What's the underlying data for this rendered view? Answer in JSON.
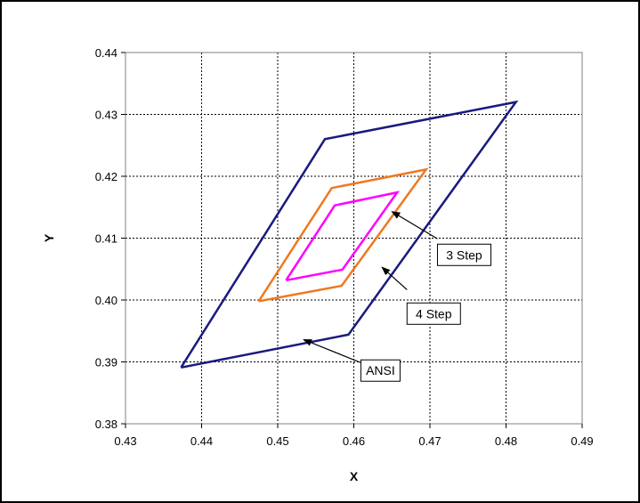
{
  "chart_data": {
    "type": "line",
    "title": "",
    "xlabel": "X",
    "ylabel": "Y",
    "xlim": [
      0.43,
      0.49
    ],
    "ylim": [
      0.38,
      0.44
    ],
    "xticks": [
      "0.43",
      "0.44",
      "0.45",
      "0.46",
      "0.47",
      "0.48",
      "0.49"
    ],
    "yticks": [
      "0.38",
      "0.39",
      "0.40",
      "0.41",
      "0.42",
      "0.43",
      "0.44"
    ],
    "grid": true,
    "legend": "none",
    "series": [
      {
        "name": "ANSI",
        "color": "#1a1a80",
        "x": [
          0.4373,
          0.4562,
          0.4813,
          0.4593,
          0.4373
        ],
        "y": [
          0.3891,
          0.426,
          0.432,
          0.3944,
          0.3891
        ]
      },
      {
        "name": "4 Step",
        "color": "#f07820",
        "x": [
          0.4475,
          0.4571,
          0.4695,
          0.4584,
          0.4475
        ],
        "y": [
          0.3998,
          0.4181,
          0.4211,
          0.4023,
          0.3998
        ]
      },
      {
        "name": "3 Step",
        "color": "#ff00ff",
        "x": [
          0.4511,
          0.4575,
          0.4657,
          0.4585,
          0.4511
        ],
        "y": [
          0.4032,
          0.4153,
          0.4174,
          0.4049,
          0.4032
        ]
      }
    ],
    "annotations": [
      {
        "text": "3 Step",
        "series": "3 Step",
        "arrow_to": [
          0.465,
          0.4143
        ],
        "label_at": [
          0.4745,
          0.4073
        ]
      },
      {
        "text": "4 Step",
        "series": "4 Step",
        "arrow_to": [
          0.4637,
          0.4053
        ],
        "label_at": [
          0.4705,
          0.3978
        ]
      },
      {
        "text": "ANSI",
        "series": "ANSI",
        "arrow_to": [
          0.4534,
          0.3936
        ],
        "label_at": [
          0.4635,
          0.3886
        ]
      }
    ]
  }
}
